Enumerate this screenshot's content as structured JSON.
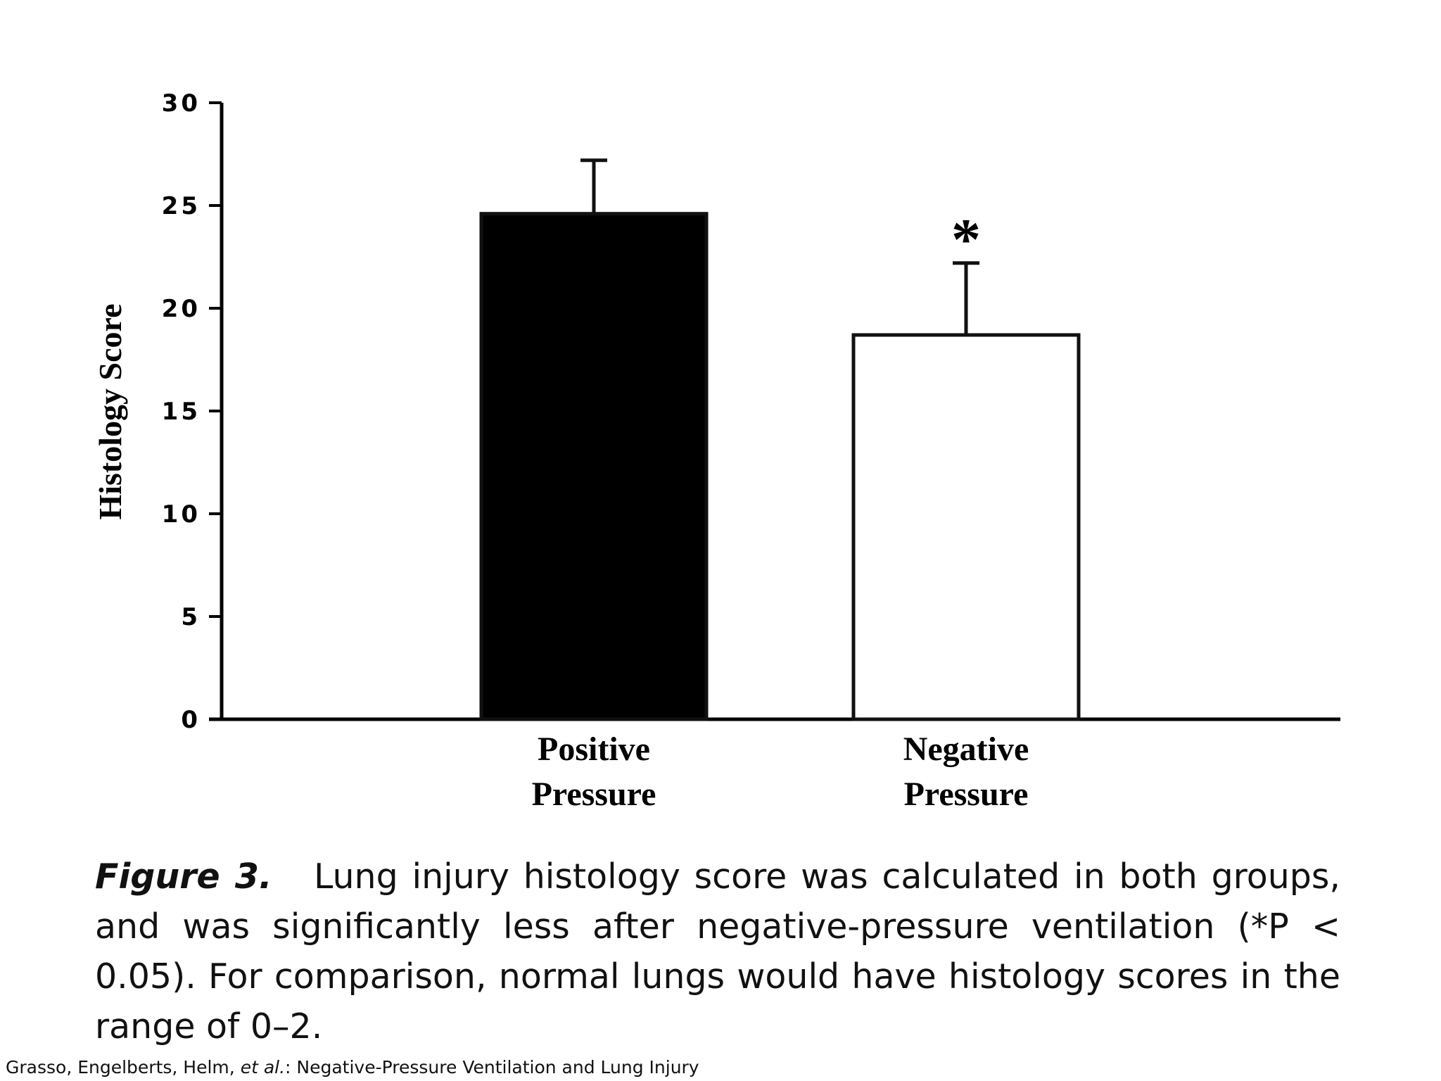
{
  "chart_data": {
    "type": "bar",
    "categories": [
      [
        "Positive",
        "Pressure"
      ],
      [
        "Negative",
        "Pressure"
      ]
    ],
    "series": [
      {
        "values": [
          24.6,
          18.7
        ],
        "errors": [
          2.6,
          3.5
        ],
        "fills": [
          "#000000",
          "#ffffff"
        ],
        "significance": [
          "",
          "*"
        ]
      }
    ],
    "ylabel": "Histology Score",
    "ylim": [
      0,
      30
    ],
    "yticks": [
      "0",
      "5",
      "10",
      "15",
      "20",
      "25",
      "30"
    ],
    "grid": false,
    "legend": "none"
  },
  "caption": {
    "label": "Figure 3.",
    "text": "Lung injury histology score was calculated in both groups, and was significantly less after negative-pressure ventilation (*P < 0.05). For comparison, normal lungs would have histology scores in the range of 0–2."
  },
  "source": {
    "authors": "Grasso, Engelberts, Helm,",
    "etal": "et al.",
    "title": ": Negative-Pressure Ventilation and Lung Injury"
  },
  "colors": {
    "axis": "#000000",
    "bar_edge": "#111111",
    "text": "#000000"
  }
}
